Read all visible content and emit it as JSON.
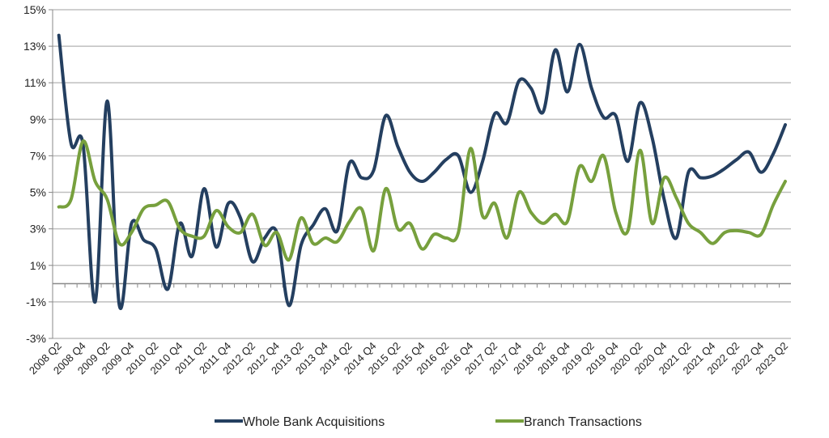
{
  "chart_data": {
    "type": "line",
    "title": "",
    "xlabel": "",
    "ylabel": "",
    "ylim": [
      -3,
      15
    ],
    "yticks": [
      15,
      13,
      11,
      9,
      7,
      5,
      3,
      1,
      -1,
      -3
    ],
    "ytick_format": "percent",
    "grid": true,
    "legend": "bottom",
    "x": [
      "2008 Q2",
      "2008 Q3",
      "2008 Q4",
      "2009 Q1",
      "2009 Q2",
      "2009 Q3",
      "2009 Q4",
      "2010 Q1",
      "2010 Q2",
      "2010 Q3",
      "2010 Q4",
      "2011 Q1",
      "2011 Q2",
      "2011 Q3",
      "2011 Q4",
      "2012 Q1",
      "2012 Q2",
      "2012 Q3",
      "2012 Q4",
      "2013 Q1",
      "2013 Q2",
      "2013 Q3",
      "2013 Q4",
      "2014 Q1",
      "2014 Q2",
      "2014 Q3",
      "2014 Q4",
      "2015 Q1",
      "2015 Q2",
      "2015 Q3",
      "2015 Q4",
      "2016 Q1",
      "2016 Q2",
      "2016 Q3",
      "2016 Q4",
      "2017 Q1",
      "2017 Q2",
      "2017 Q3",
      "2017 Q4",
      "2018 Q1",
      "2018 Q2",
      "2018 Q3",
      "2018 Q4",
      "2019 Q1",
      "2019 Q2",
      "2019 Q3",
      "2019 Q4",
      "2020 Q1",
      "2020 Q2",
      "2020 Q3",
      "2020 Q4",
      "2021 Q1",
      "2021 Q2",
      "2021 Q3",
      "2021 Q4",
      "2022 Q1",
      "2022 Q2",
      "2022 Q3",
      "2022 Q4",
      "2023 Q1",
      "2023 Q2"
    ],
    "xticklabels": [
      "2008 Q2",
      "2008 Q4",
      "2009 Q2",
      "2009 Q4",
      "2010 Q2",
      "2010 Q4",
      "2011 Q2",
      "2011 Q4",
      "2012 Q2",
      "2012 Q4",
      "2013 Q2",
      "2013 Q4",
      "2014 Q2",
      "2014 Q4",
      "2015 Q2",
      "2015 Q4",
      "2016 Q2",
      "2016 Q4",
      "2017 Q2",
      "2017 Q4",
      "2018 Q2",
      "2018 Q4",
      "2019 Q2",
      "2019 Q4",
      "2020 Q2",
      "2020 Q4",
      "2021 Q2",
      "2021 Q4",
      "2022 Q2",
      "2022 Q4",
      "2023 Q2"
    ],
    "series": [
      {
        "name": "Whole Bank Acquisitions",
        "color": "#243f60",
        "values": [
          13.6,
          7.7,
          7.6,
          -1.0,
          10.0,
          -1.2,
          3.3,
          2.4,
          1.9,
          -0.3,
          3.3,
          1.5,
          5.2,
          2.0,
          4.4,
          3.6,
          1.2,
          2.5,
          2.8,
          -1.2,
          2.1,
          3.2,
          4.1,
          2.9,
          6.6,
          5.8,
          6.2,
          9.2,
          7.5,
          6.1,
          5.6,
          6.1,
          6.8,
          7.0,
          5.0,
          6.7,
          9.3,
          8.8,
          11.1,
          10.7,
          9.4,
          12.8,
          10.5,
          13.1,
          10.7,
          9.1,
          9.2,
          6.7,
          9.9,
          8.0,
          4.6,
          2.5,
          6.1,
          5.8,
          5.9,
          6.3,
          6.8,
          7.2,
          6.1,
          7.1,
          8.7
        ]
      },
      {
        "name": "Branch Transactions",
        "color": "#77a03d",
        "values": [
          4.2,
          4.6,
          7.8,
          5.6,
          4.6,
          2.2,
          2.8,
          4.1,
          4.3,
          4.5,
          3.0,
          2.6,
          2.6,
          4.0,
          3.1,
          2.8,
          3.8,
          2.1,
          2.8,
          1.3,
          3.6,
          2.2,
          2.5,
          2.3,
          3.4,
          4.1,
          1.8,
          5.2,
          3.0,
          3.3,
          1.9,
          2.7,
          2.5,
          2.8,
          7.4,
          3.7,
          4.4,
          2.5,
          5.0,
          3.9,
          3.3,
          3.8,
          3.4,
          6.4,
          5.6,
          7.0,
          3.9,
          2.9,
          7.3,
          3.3,
          5.8,
          4.7,
          3.3,
          2.8,
          2.2,
          2.8,
          2.9,
          2.8,
          2.7,
          4.3,
          5.6
        ]
      }
    ]
  }
}
